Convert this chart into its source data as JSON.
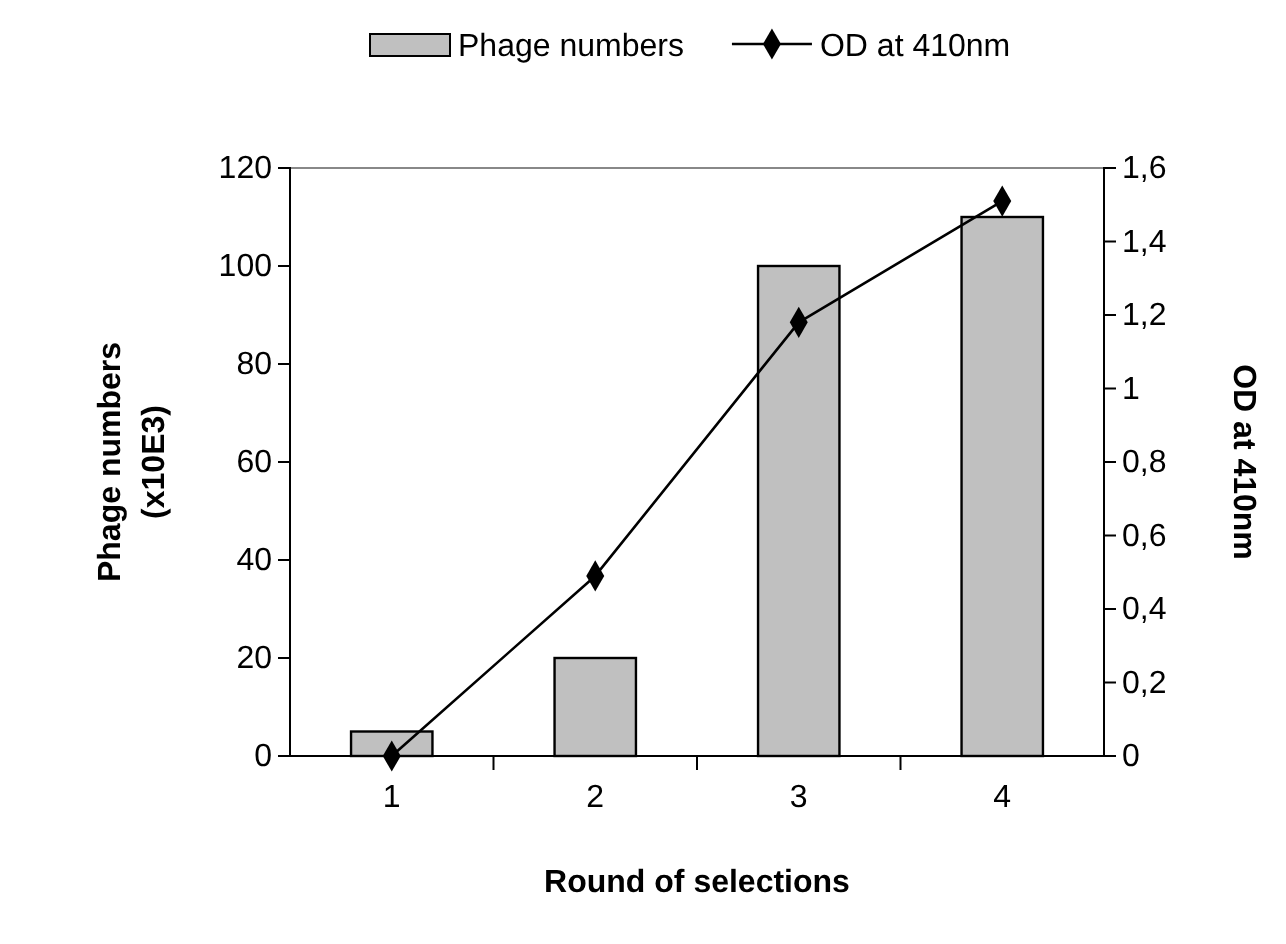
{
  "chart_data": {
    "type": "bar",
    "categories": [
      "1",
      "2",
      "3",
      "4"
    ],
    "xlabel": "Round of selections",
    "ylabel": "Phage numbers (x10E3)",
    "y2label": "OD at 410nm",
    "series": [
      {
        "name": "Phage numbers",
        "color": "#c0c0c0",
        "values": [
          5,
          20,
          100,
          110
        ]
      },
      {
        "name": "OD at 410nm",
        "type": "line",
        "axis": "y2",
        "color": "#000000",
        "marker": "diamond",
        "values": [
          0,
          0.49,
          1.18,
          1.51
        ]
      }
    ],
    "ylim": [
      0,
      120
    ],
    "yticks": [
      0,
      20,
      40,
      60,
      80,
      100,
      120
    ],
    "y2lim": [
      0,
      1.6
    ],
    "y2ticks": [
      0,
      {
        "value": 0.2,
        "label": "0,2"
      },
      {
        "value": 0.4,
        "label": "0,4"
      },
      {
        "value": 0.6,
        "label": "0,6"
      },
      {
        "value": 0.8,
        "label": "0,8"
      },
      1,
      {
        "value": 1.2,
        "label": "1,2"
      },
      {
        "value": 1.4,
        "label": "1,4"
      },
      {
        "value": 1.6,
        "label": "1,6"
      }
    ],
    "grid": false,
    "legend": "top"
  }
}
